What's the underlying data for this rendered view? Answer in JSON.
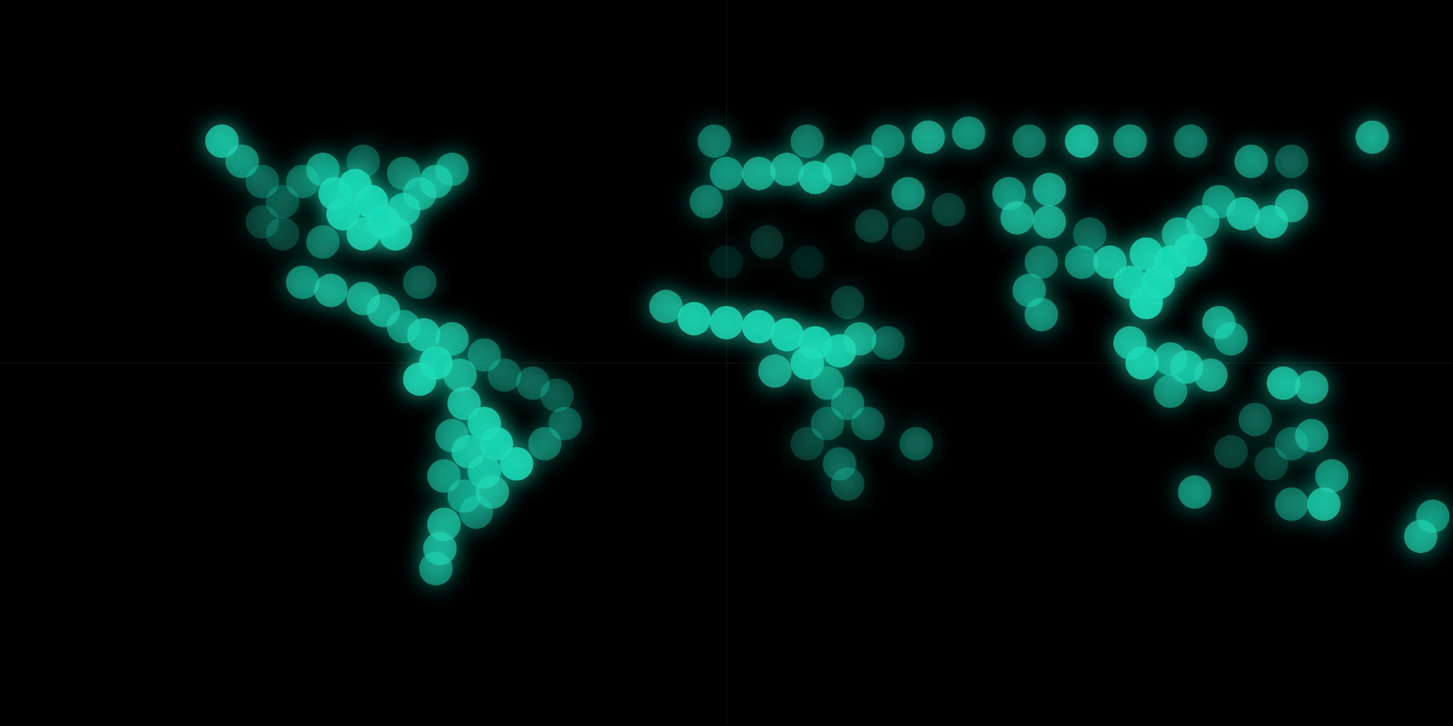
{
  "chart_data": {
    "type": "scatter",
    "color": "#1fdcb8",
    "xlim": [
      -180,
      180
    ],
    "ylim": [
      -90,
      90
    ],
    "grid": false,
    "tick_labels": false,
    "x": [
      -125,
      -120,
      -115,
      -110,
      -105,
      -100,
      -97,
      -92,
      -95,
      -88,
      -85,
      -82,
      -90,
      -80,
      -76,
      -72,
      -68,
      -80,
      -90,
      -100,
      -110,
      -115,
      -105,
      -98,
      -90,
      -85,
      -80,
      -76,
      -75,
      -68,
      -72,
      -76,
      -66,
      -60,
      -55,
      -48,
      -42,
      -40,
      -45,
      -65,
      -60,
      -57,
      -52,
      -60,
      -64,
      -68,
      -70,
      -65,
      -62,
      -70,
      -71,
      -72,
      -58,
      -15,
      -8,
      0,
      8,
      15,
      22,
      28,
      33,
      20,
      12,
      25,
      30,
      25,
      35,
      20,
      28,
      30,
      40,
      10,
      20,
      0,
      30,
      47,
      -5,
      0,
      8,
      15,
      22,
      28,
      35,
      40,
      50,
      60,
      75,
      88,
      100,
      115,
      130,
      140,
      160,
      -3,
      20,
      45,
      55,
      45,
      36,
      70,
      80,
      72,
      80,
      90,
      78,
      75,
      78,
      88,
      95,
      100,
      104,
      107,
      104,
      110,
      115,
      112,
      118,
      122,
      128,
      135,
      140,
      100,
      103,
      110,
      114,
      120,
      122,
      125,
      110,
      138,
      145,
      116,
      125,
      135,
      140,
      145,
      150,
      148,
      140,
      131,
      172,
      175
    ],
    "y": [
      55,
      50,
      45,
      40,
      45,
      48,
      42,
      44,
      37,
      40,
      35,
      32,
      32,
      38,
      42,
      45,
      48,
      47,
      50,
      30,
      32,
      35,
      20,
      18,
      16,
      13,
      9,
      20,
      7,
      6,
      0,
      -4,
      -3,
      2,
      -3,
      -5,
      -8,
      -15,
      -20,
      -10,
      -15,
      -20,
      -25,
      -27,
      -22,
      -18,
      -28,
      -33,
      -37,
      -40,
      -46,
      -51,
      -32,
      14,
      11,
      10,
      9,
      7,
      5,
      3,
      6,
      0,
      -2,
      -5,
      -10,
      -15,
      -15,
      -20,
      -25,
      -30,
      5,
      30,
      25,
      25,
      15,
      -20,
      40,
      47,
      47,
      48,
      46,
      48,
      50,
      55,
      56,
      57,
      55,
      55,
      55,
      55,
      50,
      50,
      56,
      55,
      55,
      42,
      38,
      32,
      34,
      42,
      43,
      36,
      35,
      32,
      25,
      18,
      12,
      25,
      25,
      20,
      15,
      20,
      27,
      25,
      28,
      32,
      35,
      40,
      37,
      35,
      39,
      5,
      0,
      1,
      -1,
      -3,
      10,
      6,
      -7,
      -5,
      -6,
      -32,
      -22,
      -25,
      -20,
      -18,
      -28,
      -35,
      -35,
      -14,
      -43,
      -38
    ],
    "values": [
      0.7,
      0.5,
      0.3,
      0.25,
      0.35,
      0.55,
      0.8,
      0.85,
      0.85,
      0.9,
      0.9,
      0.8,
      0.8,
      0.7,
      0.6,
      0.6,
      0.5,
      0.4,
      0.3,
      0.4,
      0.2,
      0.2,
      0.5,
      0.6,
      0.6,
      0.6,
      0.5,
      0.3,
      0.7,
      0.6,
      0.85,
      0.8,
      0.6,
      0.4,
      0.3,
      0.3,
      0.25,
      0.3,
      0.4,
      0.7,
      0.8,
      0.85,
      0.85,
      0.7,
      0.7,
      0.5,
      0.5,
      0.5,
      0.4,
      0.6,
      0.6,
      0.5,
      0.6,
      0.6,
      0.8,
      0.8,
      0.85,
      0.85,
      0.85,
      0.8,
      0.6,
      0.8,
      0.6,
      0.5,
      0.4,
      0.3,
      0.3,
      0.2,
      0.3,
      0.25,
      0.3,
      0.15,
      0.1,
      0.1,
      0.2,
      0.3,
      0.4,
      0.5,
      0.6,
      0.6,
      0.7,
      0.6,
      0.5,
      0.45,
      0.6,
      0.5,
      0.4,
      0.7,
      0.5,
      0.4,
      0.5,
      0.3,
      0.6,
      0.4,
      0.4,
      0.5,
      0.2,
      0.15,
      0.2,
      0.5,
      0.6,
      0.6,
      0.6,
      0.3,
      0.4,
      0.5,
      0.5,
      0.5,
      0.7,
      0.8,
      0.9,
      0.9,
      0.8,
      0.9,
      0.85,
      0.6,
      0.6,
      0.5,
      0.7,
      0.7,
      0.6,
      0.7,
      0.8,
      0.6,
      0.7,
      0.6,
      0.6,
      0.5,
      0.5,
      0.7,
      0.6,
      0.5,
      0.2,
      0.2,
      0.3,
      0.5,
      0.5,
      0.7,
      0.4,
      0.3,
      0.6,
      0.5
    ]
  }
}
